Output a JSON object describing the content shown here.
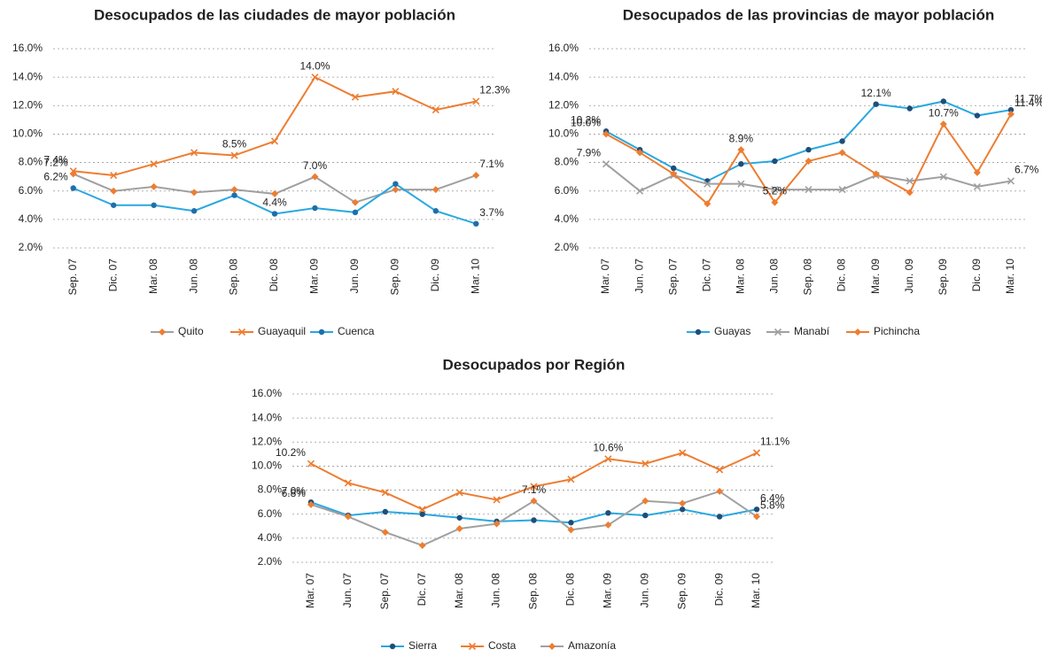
{
  "chart_data": [
    {
      "type": "line",
      "title": "Desocupados de las ciudades de mayor población",
      "categories": [
        "Sep. 07",
        "Dic. 07",
        "Mar. 08",
        "Jun. 08",
        "Sep. 08",
        "Dic. 08",
        "Mar. 09",
        "Jun. 09",
        "Sep. 09",
        "Dic. 09",
        "Mar. 10"
      ],
      "series": [
        {
          "name": "Quito",
          "color": "#ed7d31",
          "line_color": "#a0a0a0",
          "marker": "diamond",
          "values": [
            7.2,
            6.0,
            6.3,
            5.9,
            6.1,
            5.8,
            7.0,
            5.2,
            6.1,
            6.1,
            7.1
          ],
          "value_labels": [
            "7.2%",
            null,
            null,
            null,
            null,
            null,
            "7.0%",
            null,
            null,
            null,
            "7.1%"
          ]
        },
        {
          "name": "Guayaquil",
          "color": "#ed7d31",
          "line_color": "#ed7d31",
          "marker": "x",
          "values": [
            7.4,
            7.1,
            7.9,
            8.7,
            8.5,
            9.5,
            14.0,
            12.6,
            13.0,
            11.7,
            12.3
          ],
          "value_labels": [
            "7.4%",
            null,
            null,
            null,
            "8.5%",
            null,
            "14.0%",
            null,
            null,
            null,
            "12.3%"
          ]
        },
        {
          "name": "Cuenca",
          "color": "#1f6fa8",
          "line_color": "#29a8e0",
          "marker": "circle",
          "values": [
            6.2,
            5.0,
            5.0,
            4.6,
            5.7,
            4.4,
            4.8,
            4.5,
            6.5,
            4.6,
            3.7
          ],
          "value_labels": [
            "6.2%",
            null,
            null,
            null,
            null,
            "4.4%",
            null,
            null,
            null,
            null,
            "3.7%"
          ]
        }
      ],
      "ylim": [
        2,
        16
      ],
      "yticks": [
        {
          "value": 2,
          "label": "2.0%"
        },
        {
          "value": 4,
          "label": "4.0%"
        },
        {
          "value": 6,
          "label": "6.0%"
        },
        {
          "value": 8,
          "label": "8.0%"
        },
        {
          "value": 10,
          "label": "10.0%"
        },
        {
          "value": 12,
          "label": "12.0%"
        },
        {
          "value": 14,
          "label": "14.0%"
        },
        {
          "value": 16,
          "label": "16.0%"
        }
      ],
      "grid": true,
      "legend": "bottom"
    },
    {
      "type": "line",
      "title": "Desocupados  de las provincias de mayor población",
      "categories": [
        "Mar. 07",
        "Jun. 07",
        "Sep. 07",
        "Dic. 07",
        "Mar. 08",
        "Jun. 08",
        "Sep. 08",
        "Dic. 08",
        "Mar. 09",
        "Jun. 09",
        "Sep. 09",
        "Dic. 09",
        "Mar. 10"
      ],
      "series": [
        {
          "name": "Guayas",
          "color": "#1f4e79",
          "line_color": "#29a8e0",
          "marker": "circle",
          "values": [
            10.2,
            8.9,
            7.6,
            6.7,
            7.9,
            8.1,
            8.9,
            9.5,
            12.1,
            11.8,
            12.3,
            11.3,
            11.7
          ],
          "value_labels": [
            "10.2%",
            null,
            null,
            null,
            null,
            null,
            null,
            null,
            "12.1%",
            null,
            null,
            null,
            "11.7%"
          ]
        },
        {
          "name": "Manabí",
          "color": "#a0a0a0",
          "line_color": "#a0a0a0",
          "marker": "x",
          "values": [
            7.9,
            6.0,
            7.1,
            6.5,
            6.5,
            6.1,
            6.1,
            6.1,
            7.1,
            6.7,
            7.0,
            6.3,
            6.7
          ],
          "value_labels": [
            "7.9%",
            null,
            null,
            null,
            null,
            null,
            null,
            null,
            null,
            null,
            null,
            null,
            "6.7%"
          ]
        },
        {
          "name": "Pichincha",
          "color": "#ed7d31",
          "line_color": "#ed7d31",
          "marker": "diamond",
          "values": [
            10.0,
            8.7,
            7.2,
            5.1,
            8.9,
            5.2,
            8.1,
            8.7,
            7.2,
            5.9,
            10.7,
            7.3,
            11.4
          ],
          "value_labels": [
            "10.0%",
            null,
            null,
            null,
            "8.9%",
            "5.2%",
            null,
            null,
            null,
            null,
            "10.7%",
            null,
            "11.4%"
          ]
        }
      ],
      "ylim": [
        2,
        16
      ],
      "yticks": [
        {
          "value": 2,
          "label": "2.0%"
        },
        {
          "value": 4,
          "label": "4.0%"
        },
        {
          "value": 6,
          "label": "6.0%"
        },
        {
          "value": 8,
          "label": "8.0%"
        },
        {
          "value": 10,
          "label": "10.0%"
        },
        {
          "value": 12,
          "label": "12.0%"
        },
        {
          "value": 14,
          "label": "14.0%"
        },
        {
          "value": 16,
          "label": "16.0%"
        }
      ],
      "grid": true,
      "legend": "bottom"
    },
    {
      "type": "line",
      "title": "Desocupados por Región",
      "categories": [
        "Mar. 07",
        "Jun. 07",
        "Sep. 07",
        "Dic. 07",
        "Mar. 08",
        "Jun. 08",
        "Sep. 08",
        "Dic. 08",
        "Mar. 09",
        "Jun. 09",
        "Sep. 09",
        "Dic. 09",
        "Mar. 10"
      ],
      "series": [
        {
          "name": "Sierra",
          "color": "#1f4e79",
          "line_color": "#29a8e0",
          "marker": "circle",
          "values": [
            7.0,
            5.9,
            6.2,
            6.0,
            5.7,
            5.4,
            5.5,
            5.3,
            6.1,
            5.9,
            6.4,
            5.8,
            6.4
          ],
          "value_labels": [
            "7.0%",
            null,
            null,
            null,
            null,
            null,
            null,
            null,
            null,
            null,
            null,
            null,
            "6.4%"
          ]
        },
        {
          "name": "Costa",
          "color": "#ed7d31",
          "line_color": "#ed7d31",
          "marker": "x",
          "values": [
            10.2,
            8.6,
            7.8,
            6.4,
            7.8,
            7.2,
            8.3,
            8.9,
            10.6,
            10.2,
            11.1,
            9.7,
            11.1
          ],
          "value_labels": [
            "10.2%",
            null,
            null,
            null,
            null,
            null,
            null,
            null,
            "10.6%",
            null,
            null,
            null,
            "11.1%"
          ]
        },
        {
          "name": "Amazonía",
          "color": "#ed7d31",
          "line_color": "#a0a0a0",
          "marker": "diamond",
          "values": [
            6.8,
            5.8,
            4.5,
            3.4,
            4.8,
            5.2,
            7.1,
            4.7,
            5.1,
            7.1,
            6.9,
            7.9,
            5.8
          ],
          "value_labels": [
            "6.8%",
            null,
            null,
            null,
            null,
            null,
            "7.1%",
            null,
            null,
            null,
            null,
            null,
            "5.8%"
          ]
        }
      ],
      "ylim": [
        2,
        16
      ],
      "yticks": [
        {
          "value": 2,
          "label": "2.0%"
        },
        {
          "value": 4,
          "label": "4.0%"
        },
        {
          "value": 6,
          "label": "6.0%"
        },
        {
          "value": 8,
          "label": "8.0%"
        },
        {
          "value": 10,
          "label": "10.0%"
        },
        {
          "value": 12,
          "label": "12.0%"
        },
        {
          "value": 14,
          "label": "14.0%"
        },
        {
          "value": 16,
          "label": "16.0%"
        }
      ],
      "grid": true,
      "legend": "bottom"
    }
  ]
}
